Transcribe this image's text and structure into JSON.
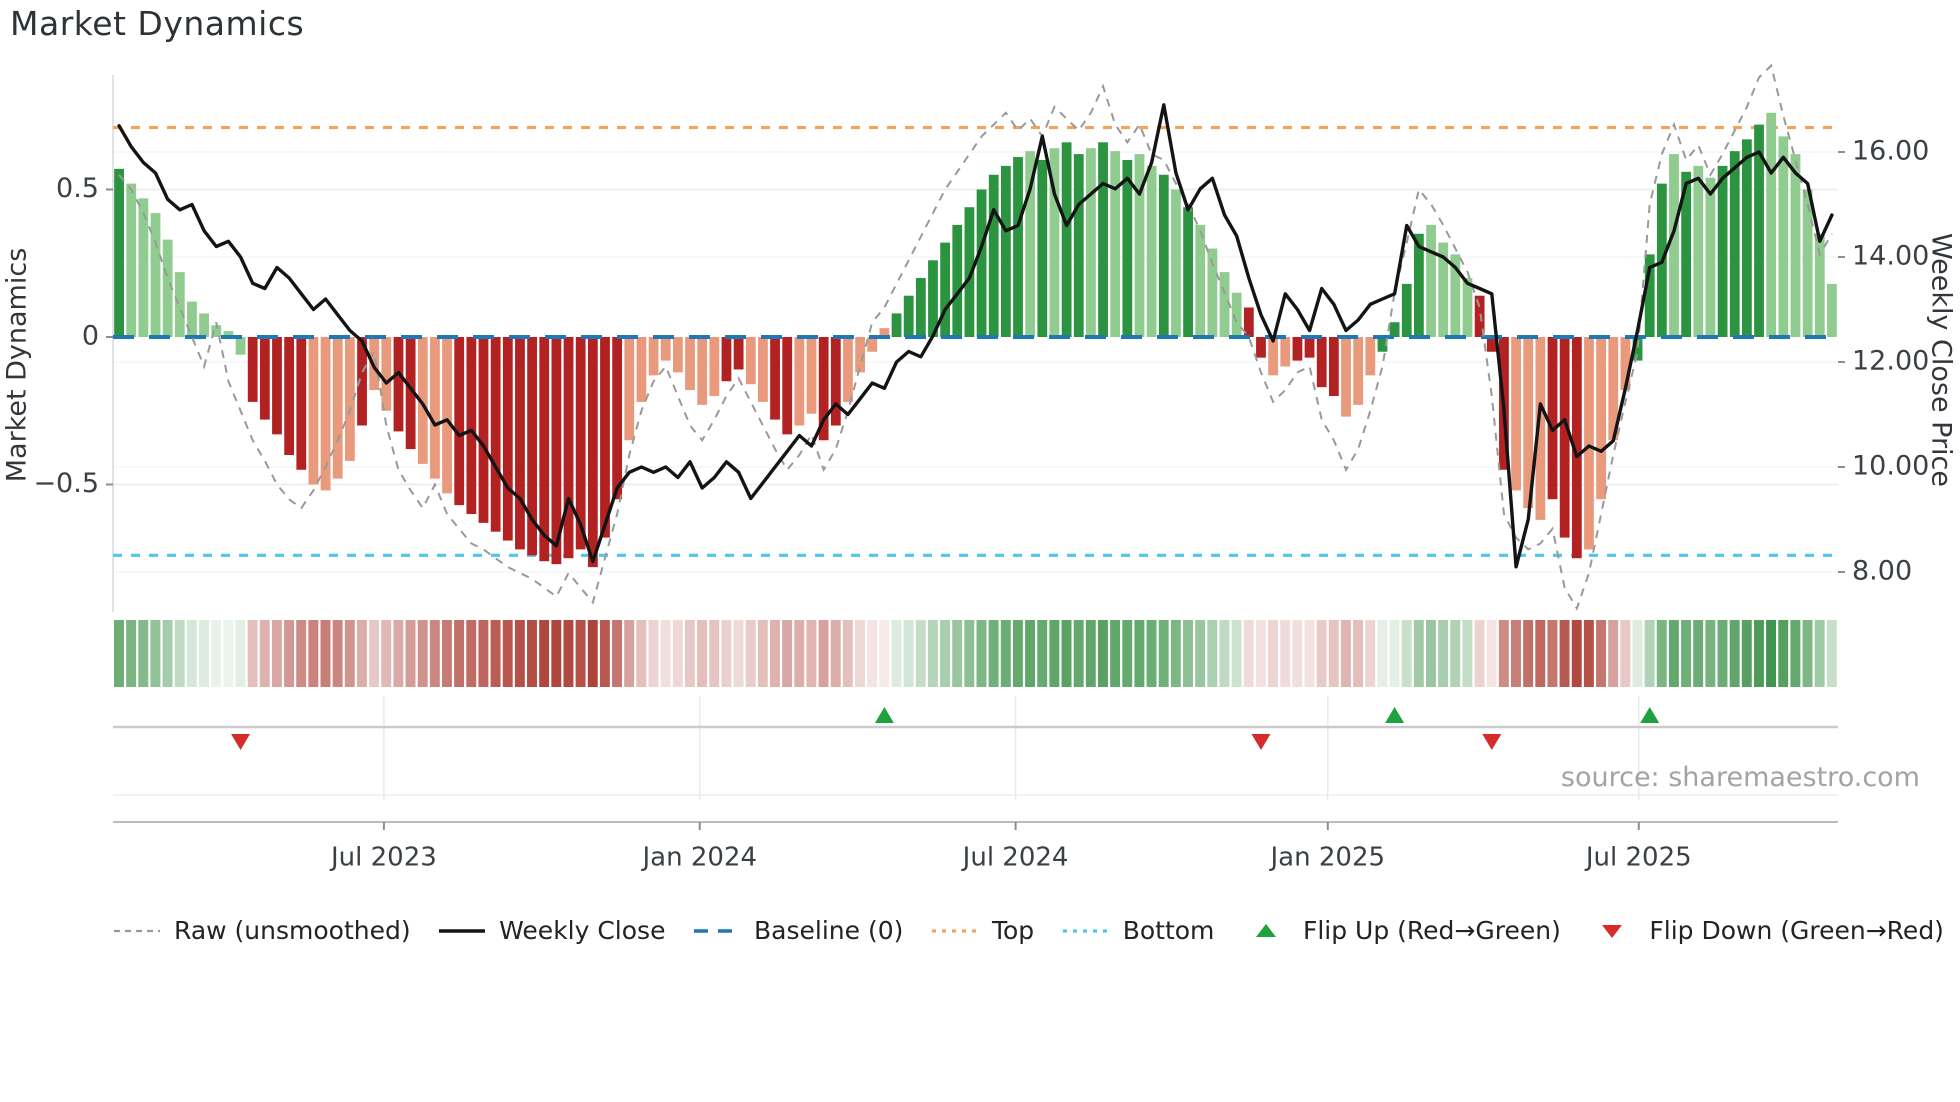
{
  "title": "Market Dynamics",
  "source": "source: sharemaestro.com",
  "y_left": {
    "label": "Market Dynamics",
    "ticks": [
      {
        "label": "0.5",
        "value": 0.5
      },
      {
        "label": "0",
        "value": 0
      },
      {
        "label": "−0.5",
        "value": -0.5
      }
    ]
  },
  "y_right": {
    "label": "Weekly Close Price",
    "ticks": [
      {
        "label": "16.00",
        "value": 16
      },
      {
        "label": "14.00",
        "value": 14
      },
      {
        "label": "12.00",
        "value": 12
      },
      {
        "label": "10.00",
        "value": 10
      },
      {
        "label": "8.00",
        "value": 8
      }
    ]
  },
  "x_axis": {
    "ticks": [
      {
        "label": "Jul 2023",
        "index": 21.8
      },
      {
        "label": "Jan 2024",
        "index": 47.8
      },
      {
        "label": "Jul 2024",
        "index": 73.8
      },
      {
        "label": "Jan 2025",
        "index": 99.5
      },
      {
        "label": "Jul 2025",
        "index": 125.1
      }
    ]
  },
  "legend": {
    "items": [
      {
        "marker": "dashed-line",
        "color": "#999999",
        "label": "Raw (unsmoothed)"
      },
      {
        "marker": "solid-line",
        "color": "#141414",
        "label": "Weekly Close"
      },
      {
        "marker": "dash-pair",
        "color": "#1f77b4",
        "label": "Baseline (0)"
      },
      {
        "marker": "dotted-line",
        "color": "#f2a35c",
        "label": "Top"
      },
      {
        "marker": "dotted-line",
        "color": "#4dc8e8",
        "label": "Bottom"
      },
      {
        "marker": "triangle-up",
        "color": "#1fa23e",
        "label": "Flip Up (Red→Green)"
      },
      {
        "marker": "triangle-down",
        "color": "#d62b2b",
        "label": "Flip Down (Green→Red)"
      }
    ]
  },
  "colors": {
    "bar_dark_green": "#2c9440",
    "bar_light_green": "#90cc90",
    "bar_dark_red": "#b22222",
    "bar_salmon": "#e99a7d",
    "raw_line": "#999999",
    "close_line": "#141414",
    "baseline": "#1f77b4",
    "top_line": "#f2a35c",
    "bottom_line": "#4dc8e8",
    "flip_up": "#1fa23e",
    "flip_down": "#d62b2b",
    "heat_green_rgb": "47,139,60",
    "heat_red_rgb": "168,53,43"
  },
  "chart_data": {
    "type": "bar+line combo with heatmap strip and flip markers",
    "title": "Market Dynamics",
    "xlabel": "",
    "ylabel_left": "Market Dynamics",
    "ylabel_right": "Weekly Close Price",
    "ylim_left": [
      -0.93,
      0.89
    ],
    "ylim_right": [
      7.2,
      17.5
    ],
    "baseline": 0,
    "top_line": 0.71,
    "bottom_line": -0.74,
    "grid": "horizontal faint at ±0.5 and right-axis levels",
    "legend_position": "bottom",
    "n_weeks": 142,
    "series": [
      {
        "name": "Market Dynamics (smoothed oscillator bars)",
        "axis": "left",
        "values": [
          0.57,
          0.52,
          0.47,
          0.42,
          0.33,
          0.22,
          0.12,
          0.08,
          0.04,
          0.02,
          -0.06,
          -0.22,
          -0.28,
          -0.33,
          -0.4,
          -0.45,
          -0.5,
          -0.52,
          -0.48,
          -0.42,
          -0.3,
          -0.18,
          -0.25,
          -0.32,
          -0.38,
          -0.43,
          -0.48,
          -0.53,
          -0.57,
          -0.6,
          -0.63,
          -0.66,
          -0.69,
          -0.72,
          -0.74,
          -0.76,
          -0.77,
          -0.75,
          -0.72,
          -0.78,
          -0.68,
          -0.55,
          -0.35,
          -0.22,
          -0.13,
          -0.08,
          -0.12,
          -0.18,
          -0.23,
          -0.2,
          -0.15,
          -0.11,
          -0.16,
          -0.22,
          -0.28,
          -0.33,
          -0.3,
          -0.26,
          -0.35,
          -0.3,
          -0.22,
          -0.12,
          -0.05,
          0.03,
          0.08,
          0.14,
          0.2,
          0.26,
          0.32,
          0.38,
          0.44,
          0.5,
          0.55,
          0.58,
          0.61,
          0.63,
          0.6,
          0.64,
          0.66,
          0.62,
          0.64,
          0.66,
          0.63,
          0.6,
          0.62,
          0.58,
          0.55,
          0.5,
          0.44,
          0.38,
          0.3,
          0.22,
          0.15,
          0.1,
          -0.07,
          -0.13,
          -0.1,
          -0.08,
          -0.07,
          -0.17,
          -0.2,
          -0.27,
          -0.23,
          -0.13,
          -0.05,
          0.05,
          0.18,
          0.35,
          0.38,
          0.32,
          0.28,
          0.2,
          0.14,
          -0.05,
          -0.45,
          -0.52,
          -0.58,
          -0.62,
          -0.55,
          -0.68,
          -0.75,
          -0.72,
          -0.55,
          -0.35,
          -0.18,
          -0.08,
          0.28,
          0.52,
          0.62,
          0.56,
          0.58,
          0.54,
          0.58,
          0.63,
          0.67,
          0.72,
          0.76,
          0.68,
          0.62,
          0.5,
          0.35,
          0.18
        ]
      },
      {
        "name": "Raw (unsmoothed)",
        "axis": "left",
        "values": [
          0.55,
          0.5,
          0.42,
          0.32,
          0.2,
          0.1,
          0.0,
          -0.1,
          0.05,
          -0.15,
          -0.25,
          -0.35,
          -0.42,
          -0.5,
          -0.55,
          -0.58,
          -0.52,
          -0.44,
          -0.35,
          -0.25,
          -0.12,
          -0.05,
          -0.3,
          -0.45,
          -0.52,
          -0.58,
          -0.5,
          -0.6,
          -0.65,
          -0.7,
          -0.72,
          -0.75,
          -0.78,
          -0.8,
          -0.82,
          -0.85,
          -0.88,
          -0.8,
          -0.85,
          -0.9,
          -0.75,
          -0.6,
          -0.4,
          -0.25,
          -0.15,
          -0.1,
          -0.2,
          -0.3,
          -0.35,
          -0.28,
          -0.2,
          -0.14,
          -0.22,
          -0.3,
          -0.38,
          -0.45,
          -0.4,
          -0.33,
          -0.45,
          -0.38,
          -0.25,
          -0.1,
          0.05,
          0.1,
          0.18,
          0.26,
          0.34,
          0.42,
          0.5,
          0.56,
          0.62,
          0.68,
          0.72,
          0.76,
          0.7,
          0.74,
          0.68,
          0.78,
          0.74,
          0.7,
          0.76,
          0.85,
          0.72,
          0.66,
          0.72,
          0.62,
          0.6,
          0.52,
          0.45,
          0.36,
          0.25,
          0.15,
          0.05,
          0.0,
          -0.12,
          -0.22,
          -0.18,
          -0.12,
          -0.1,
          -0.28,
          -0.35,
          -0.45,
          -0.38,
          -0.25,
          -0.1,
          0.15,
          0.32,
          0.5,
          0.45,
          0.38,
          0.3,
          0.22,
          0.1,
          -0.2,
          -0.6,
          -0.68,
          -0.72,
          -0.7,
          -0.65,
          -0.85,
          -0.92,
          -0.8,
          -0.6,
          -0.4,
          -0.22,
          -0.05,
          0.45,
          0.62,
          0.72,
          0.6,
          0.65,
          0.55,
          0.62,
          0.7,
          0.78,
          0.88,
          0.92,
          0.75,
          0.6,
          0.45,
          0.28,
          0.35
        ]
      },
      {
        "name": "Weekly Close",
        "axis": "right",
        "values": [
          16.5,
          16.1,
          15.8,
          15.6,
          15.1,
          14.9,
          15.0,
          14.5,
          14.2,
          14.3,
          14.0,
          13.5,
          13.4,
          13.8,
          13.6,
          13.3,
          13.0,
          13.2,
          12.9,
          12.6,
          12.4,
          11.9,
          11.6,
          11.8,
          11.5,
          11.2,
          10.8,
          10.9,
          10.6,
          10.7,
          10.4,
          10.0,
          9.6,
          9.4,
          9.0,
          8.7,
          8.5,
          9.4,
          8.9,
          8.2,
          8.9,
          9.6,
          9.9,
          10.0,
          9.9,
          10.0,
          9.8,
          10.1,
          9.6,
          9.8,
          10.1,
          9.9,
          9.4,
          9.7,
          10.0,
          10.3,
          10.6,
          10.4,
          10.9,
          11.2,
          11.0,
          11.3,
          11.6,
          11.5,
          12.0,
          12.2,
          12.1,
          12.5,
          13.0,
          13.3,
          13.6,
          14.2,
          14.9,
          14.5,
          14.6,
          15.3,
          16.3,
          15.2,
          14.6,
          15.0,
          15.2,
          15.4,
          15.3,
          15.5,
          15.2,
          15.8,
          16.9,
          15.6,
          14.9,
          15.3,
          15.5,
          14.8,
          14.4,
          13.6,
          12.9,
          12.4,
          13.3,
          13.0,
          12.6,
          13.4,
          13.1,
          12.6,
          12.8,
          13.1,
          13.2,
          13.3,
          14.6,
          14.2,
          14.1,
          14.0,
          13.8,
          13.5,
          13.4,
          13.3,
          11.1,
          8.1,
          9.0,
          11.2,
          10.7,
          10.9,
          10.2,
          10.4,
          10.3,
          10.5,
          11.5,
          12.6,
          13.8,
          13.9,
          14.5,
          15.4,
          15.5,
          15.2,
          15.5,
          15.7,
          15.9,
          16.0,
          15.6,
          15.9,
          15.6,
          15.4,
          14.3,
          14.8
        ]
      }
    ],
    "bar_color_classes": "GggggggggggRRRRRrrrrRrrRRrrrRRRRRRRRRRRRRRrrrrrrrrRRrrRRrrRRrrrrGGGGGGGGGGGgGgGGgGgGggGgGggggRRrrRRRRrrrGGGGggggRRRrrrRRRrrrrGGGgGggGGGGgggggg",
    "heatmap": "same sign/intensity as oscillator bars, opacity proportional to |value|",
    "flip_up_indices": [
      63,
      105,
      126
    ],
    "flip_down_indices": [
      10,
      94,
      113
    ]
  }
}
